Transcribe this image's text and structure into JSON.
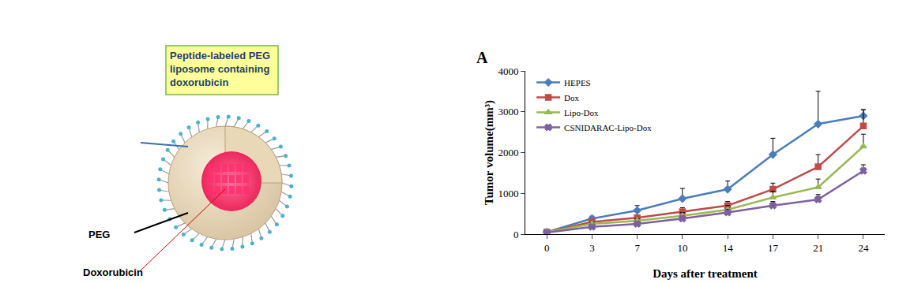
{
  "diagram": {
    "title_lines": [
      "Peptide-labeled PEG",
      "liposome containing",
      "doxorubicin"
    ],
    "peg_label": "PEG",
    "drug_label": "Doxorubicin"
  },
  "chart_data": {
    "type": "line",
    "panel_label": "A",
    "x_label": "Days after treatment",
    "y_label": "Tumor volume(mm³)",
    "categories": [
      "0",
      "3",
      "7",
      "10",
      "14",
      "17",
      "21",
      "24"
    ],
    "ylim": [
      0,
      4000
    ],
    "yticks": [
      0,
      1000,
      2000,
      3000,
      4000
    ],
    "grid": false,
    "legend": "upper left",
    "series": [
      {
        "name": "HEPES",
        "color": "#4a7ebb",
        "marker": "diamond",
        "values": [
          50,
          380,
          580,
          870,
          1100,
          1950,
          2700,
          2900
        ],
        "errors": [
          20,
          60,
          120,
          250,
          200,
          400,
          800,
          150
        ]
      },
      {
        "name": "Dox",
        "color": "#be4b48",
        "marker": "square",
        "values": [
          50,
          300,
          400,
          550,
          700,
          1100,
          1650,
          2650
        ],
        "errors": [
          20,
          40,
          60,
          100,
          100,
          150,
          300,
          400
        ]
      },
      {
        "name": "Lipo-Dox",
        "color": "#98b954",
        "marker": "triangle-up",
        "values": [
          50,
          250,
          330,
          450,
          600,
          900,
          1150,
          2150
        ],
        "errors": [
          20,
          40,
          50,
          80,
          100,
          150,
          200,
          300
        ]
      },
      {
        "name": "CSNIDARAC-Lipo-Dox",
        "color": "#7d60a0",
        "marker": "x",
        "values": [
          40,
          180,
          250,
          380,
          530,
          700,
          850,
          1550
        ],
        "errors": [
          15,
          30,
          40,
          60,
          80,
          100,
          120,
          150
        ]
      }
    ]
  }
}
